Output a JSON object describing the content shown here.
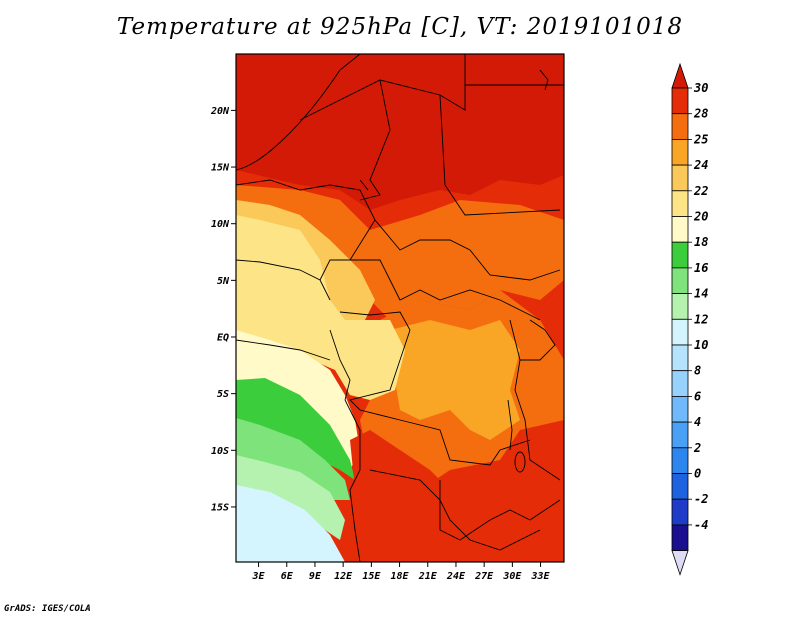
{
  "title": "Temperature at 925hPa [C], VT: 2019101018",
  "credit": "GrADS: IGES/COLA",
  "map": {
    "lat_labels": [
      {
        "label": "20N",
        "lat": 20
      },
      {
        "label": "15N",
        "lat": 15
      },
      {
        "label": "10N",
        "lat": 10
      },
      {
        "label": "5N",
        "lat": 5
      },
      {
        "label": "EQ",
        "lat": 0
      },
      {
        "label": "5S",
        "lat": -5
      },
      {
        "label": "10S",
        "lat": -10
      },
      {
        "label": "15S",
        "lat": -15
      }
    ],
    "lon_labels": [
      {
        "label": "3E",
        "lon": 3
      },
      {
        "label": "6E",
        "lon": 6
      },
      {
        "label": "9E",
        "lon": 9
      },
      {
        "label": "12E",
        "lon": 12
      },
      {
        "label": "15E",
        "lon": 15
      },
      {
        "label": "18E",
        "lon": 18
      },
      {
        "label": "21E",
        "lon": 21
      },
      {
        "label": "24E",
        "lon": 24
      },
      {
        "label": "27E",
        "lon": 27
      },
      {
        "label": "30E",
        "lon": 30
      },
      {
        "label": "33E",
        "lon": 33
      }
    ]
  },
  "colorbar": {
    "levels": [
      {
        "label": "-4",
        "color": "#1a0f8f"
      },
      {
        "label": "-2",
        "color": "#1e3cc8"
      },
      {
        "label": "0",
        "color": "#1f62e0"
      },
      {
        "label": "2",
        "color": "#2d86ee"
      },
      {
        "label": "4",
        "color": "#4aa0f5"
      },
      {
        "label": "6",
        "color": "#6fb8fa"
      },
      {
        "label": "8",
        "color": "#96d2fb"
      },
      {
        "label": "10",
        "color": "#b6e3fc"
      },
      {
        "label": "12",
        "color": "#d4f5fd"
      },
      {
        "label": "14",
        "color": "#b5f2b0"
      },
      {
        "label": "16",
        "color": "#7de37a"
      },
      {
        "label": "18",
        "color": "#3ccd3c"
      },
      {
        "label": "20",
        "color": "#fffac8"
      },
      {
        "label": "22",
        "color": "#fde486"
      },
      {
        "label": "24",
        "color": "#fbc85a"
      },
      {
        "label": "25",
        "color": "#f9a526"
      },
      {
        "label": "28",
        "color": "#f46e10"
      },
      {
        "label": "30",
        "color": "#e52c08"
      }
    ],
    "low_color": "#dedcf4",
    "high_color": "#d21a06"
  }
}
